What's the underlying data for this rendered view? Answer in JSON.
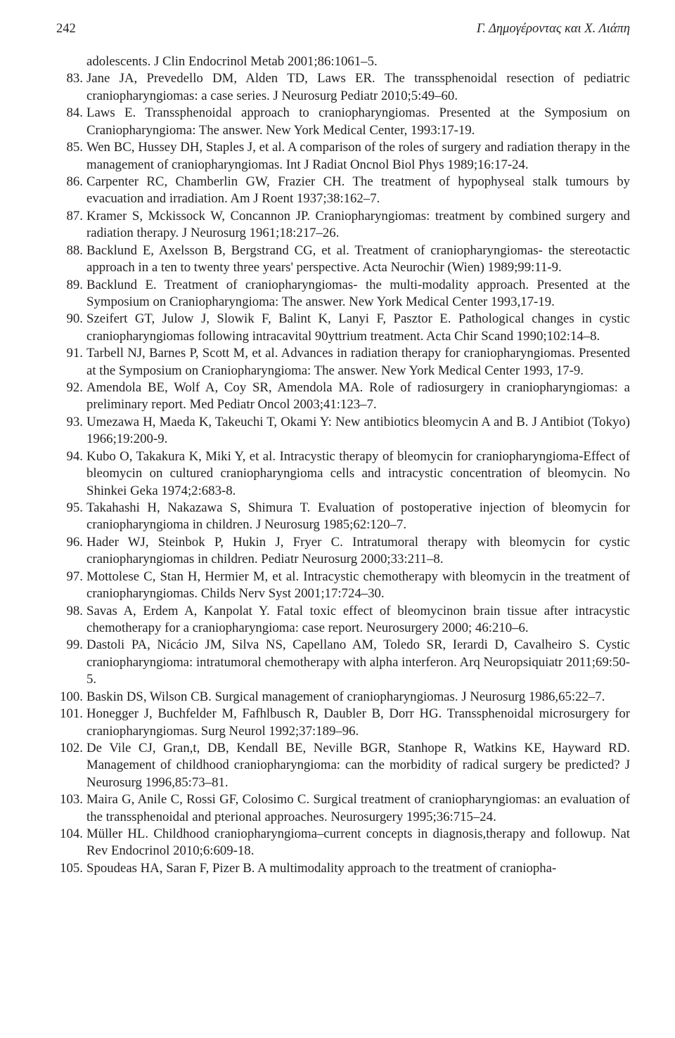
{
  "header": {
    "page_number": "242",
    "authors": "Γ. Δημογέροντας και Χ. Λιάπη"
  },
  "continuation_text": "adolescents. J Clin Endocrinol Metab 2001;86:1061–5.",
  "references": [
    {
      "n": "83.",
      "text": "Jane JA, Prevedello DM, Alden TD, Laws ER. The transsphenoidal resection of pediatric craniopharyngiomas: a case series. J Neurosurg Pediatr 2010;5:49–60."
    },
    {
      "n": "84.",
      "text": "Laws E. Transsphenoidal approach to craniopharyngiomas. Presented at the Symposium on Craniopharyngioma: The answer. New York Medical Center, 1993:17-19."
    },
    {
      "n": "85.",
      "text": "Wen BC, Hussey DH, Staples J, et al. A comparison of the roles of surgery and radiation therapy in the management of craniopharyngiomas. Int J Radiat Oncnol Biol Phys 1989;16:17-24."
    },
    {
      "n": "86.",
      "text": "Carpenter RC, Chamberlin GW, Frazier CH. The treatment of hypophyseal stalk tumours by evacuation and irradiation. Am J Roent 1937;38:162–7."
    },
    {
      "n": "87.",
      "text": "Kramer S, Mckissock W, Concannon JP. Craniopharyngiomas: treatment by combined surgery and radiation therapy. J Neurosurg 1961;18:217–26."
    },
    {
      "n": "88.",
      "text": "Backlund E, Axelsson B, Bergstrand CG, et al. Treatment of craniopharyngiomas- the stereotactic approach in a ten to twenty three years' perspective. Acta Neurochir (Wien) 1989;99:11-9."
    },
    {
      "n": "89.",
      "text": "Backlund E. Treatment of craniopharyngiomas- the multi-modality approach. Presented at the Symposium on Craniopharyngioma: The answer. New York Medical Center 1993,17-19."
    },
    {
      "n": "90.",
      "text": "Szeifert GT, Julow J, Slowik F, Balint K, Lanyi F, Pasztor E. Pathological changes in cystic craniopharyngiomas following intracavital 90yttrium treatment. Acta Chir Scand 1990;102:14–8."
    },
    {
      "n": "91.",
      "text": "Tarbell NJ, Barnes P, Scott M, et al. Advances in radiation therapy for craniopharyngiomas. Presented at the Symposium on Craniopharyngioma: The answer. New York Medical Center 1993, 17-9."
    },
    {
      "n": "92.",
      "text": "Amendola BE, Wolf A, Coy SR, Amendola MA. Role of radiosurgery in craniopharyngiomas: a preliminary report. Med Pediatr Oncol 2003;41:123–7."
    },
    {
      "n": "93.",
      "text": "Umezawa H, Maeda K, Takeuchi T, Okami Y: New antibiotics bleomycin A and B. J Antibiot (Tokyo) 1966;19:200-9."
    },
    {
      "n": "94.",
      "text": "Kubo O, Takakura K, Miki Y, et al. Intracystic therapy of bleomycin for craniopharyngioma-Effect of bleomycin on cultured craniopharyngioma cells and intracystic concentration of bleomycin. No Shinkei Geka 1974;2:683-8."
    },
    {
      "n": "95.",
      "text": "Takahashi H, Nakazawa S, Shimura T. Evaluation of postoperative injection of bleomycin for craniopharyngioma in children. J Neurosurg 1985;62:120–7."
    },
    {
      "n": "96.",
      "text": " Hader WJ, Steinbok P, Hukin J, Fryer C. Intratumoral therapy with bleomycin for cystic craniopharyngiomas in children. Pediatr Neurosurg 2000;33:211–8."
    },
    {
      "n": "97.",
      "text": " Mottolese C, Stan H, Hermier M, et al. Intracystic chemotherapy with bleomycin in the treatment of craniopharyngiomas. Childs Nerv Syst 2001;17:724–30."
    },
    {
      "n": "98.",
      "text": "Savas A, Erdem A, Kanpolat Y. Fatal toxic effect of bleomycinon brain tissue after intracystic chemotherapy for a craniopharyngioma: case report. Neurosurgery 2000; 46:210–6."
    },
    {
      "n": "99.",
      "text": "Dastoli PA, Nicácio JM, Silva NS, Capellano AM, Toledo SR, Ierardi D, Cavalheiro S. Cystic craniopharyngioma: intratumoral chemotherapy with alpha interferon. Arq Neuropsiquiatr 2011;69:50-5."
    },
    {
      "n": "100.",
      "text": "Baskin DS, Wilson CB. Surgical management of craniopharyngiomas. J Neurosurg 1986,65:22–7."
    },
    {
      "n": "101.",
      "text": "Honegger J, Buchfelder M, Fafhlbusch R, Daubler B, Dorr HG. Transsphenoidal microsurgery for craniopharyngiomas. Surg Neurol 1992;37:189–96."
    },
    {
      "n": "102.",
      "text": " De Vile CJ, Gran,t, DB, Kendall BE, Neville BGR, Stanhope R, Watkins KE, Hayward RD. Management of childhood craniopharyngioma: can the morbidity of radical surgery be predicted? J Neurosurg 1996,85:73–81."
    },
    {
      "n": "103.",
      "text": "Maira G, Anile C, Rossi GF, Colosimo C. Surgical treatment of craniopharyngiomas: an evaluation of the transsphenoidal and pterional approaches. Neurosurgery 1995;36:715–24."
    },
    {
      "n": "104.",
      "text": "Müller HL. Childhood craniopharyngioma–current concepts in diagnosis,therapy and followup. Nat Rev Endocrinol 2010;6:609-18."
    },
    {
      "n": "105.",
      "text": "Spoudeas HA, Saran F, Pizer B. A multimodality approach to the treatment of craniopha-"
    }
  ]
}
